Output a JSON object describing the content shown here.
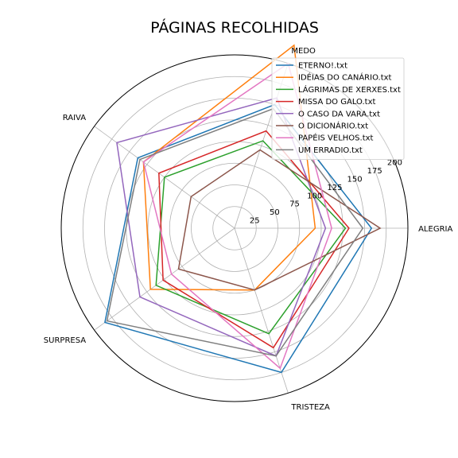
{
  "chart_data": {
    "type": "radar",
    "title": "PÁGINAS RECOLHIDAS",
    "axes": [
      "ALEGRIA",
      "MEDO",
      "RAIVA",
      "SURPRESA",
      "TRISTEZA"
    ],
    "radial_ticks": [
      25,
      50,
      75,
      100,
      125,
      150,
      175,
      200
    ],
    "rlim": [
      0,
      200
    ],
    "grid": true,
    "legend_position": "top-right",
    "series": [
      {
        "name": "ETERNO!.txt",
        "color": "#1f77b4",
        "values": [
          158,
          150,
          138,
          185,
          175
        ]
      },
      {
        "name": "IDÉIAS DO CANÁRIO.txt",
        "color": "#ff7f0e",
        "values": [
          93,
          222,
          130,
          120,
          75
        ]
      },
      {
        "name": "LÁGRIMAS DE XERXES.txt",
        "color": "#2ca02c",
        "values": [
          128,
          106,
          100,
          112,
          128
        ]
      },
      {
        "name": "MISSA DO GALO.txt",
        "color": "#d62728",
        "values": [
          132,
          118,
          108,
          102,
          145
        ]
      },
      {
        "name": "O CASO DA VARA.txt",
        "color": "#9467bd",
        "values": [
          105,
          158,
          168,
          135,
          155
        ]
      },
      {
        "name": "O DICIONÁRIO.txt",
        "color": "#8c564b",
        "values": [
          168,
          95,
          62,
          80,
          75
        ]
      },
      {
        "name": "PAPÉIS VELHOS.txt",
        "color": "#e377c2",
        "values": [
          112,
          200,
          130,
          90,
          170
        ]
      },
      {
        "name": "UM ERRADIO.txt",
        "color": "#7f7f7f",
        "values": [
          148,
          145,
          135,
          182,
          155
        ]
      }
    ]
  }
}
